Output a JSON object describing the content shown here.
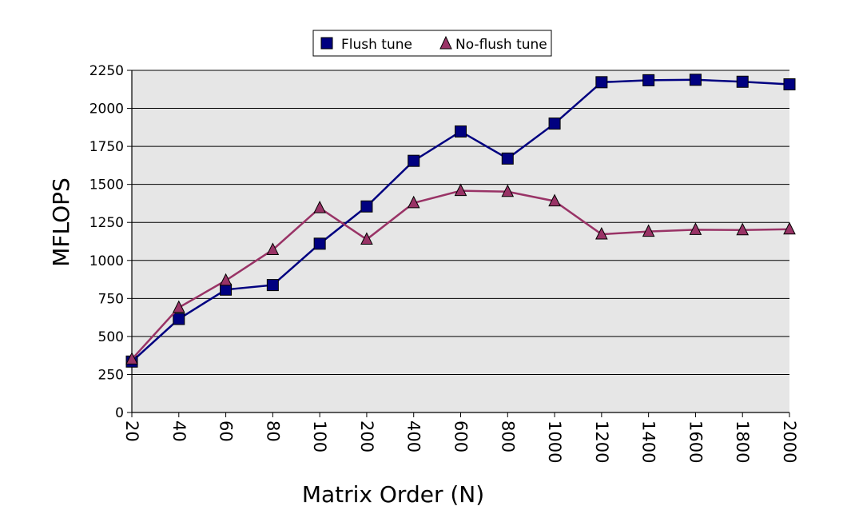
{
  "chart_data": {
    "type": "line",
    "categories": [
      "20",
      "40",
      "60",
      "80",
      "100",
      "200",
      "400",
      "600",
      "800",
      "1000",
      "1200",
      "1400",
      "1600",
      "1800",
      "2000"
    ],
    "series": [
      {
        "name": "Flush tune",
        "color": "#000080",
        "marker": "square",
        "values": [
          335,
          615,
          808,
          838,
          1110,
          1355,
          1655,
          1848,
          1670,
          1900,
          2172,
          2185,
          2188,
          2175,
          2158
        ]
      },
      {
        "name": "No-flush tune",
        "color": "#993366",
        "marker": "triangle",
        "values": [
          350,
          690,
          868,
          1070,
          1345,
          1138,
          1378,
          1458,
          1452,
          1390,
          1172,
          1190,
          1202,
          1200,
          1205
        ]
      }
    ],
    "xlabel": "Matrix Order (N)",
    "ylabel": "MFLOPS",
    "ylim": [
      0,
      2250
    ],
    "yticks": [
      "0",
      "250",
      "500",
      "750",
      "1000",
      "1250",
      "1500",
      "1750",
      "2000",
      "2250"
    ],
    "grid": true,
    "plot_background": "#e6e6e6",
    "legend": "top-center"
  }
}
